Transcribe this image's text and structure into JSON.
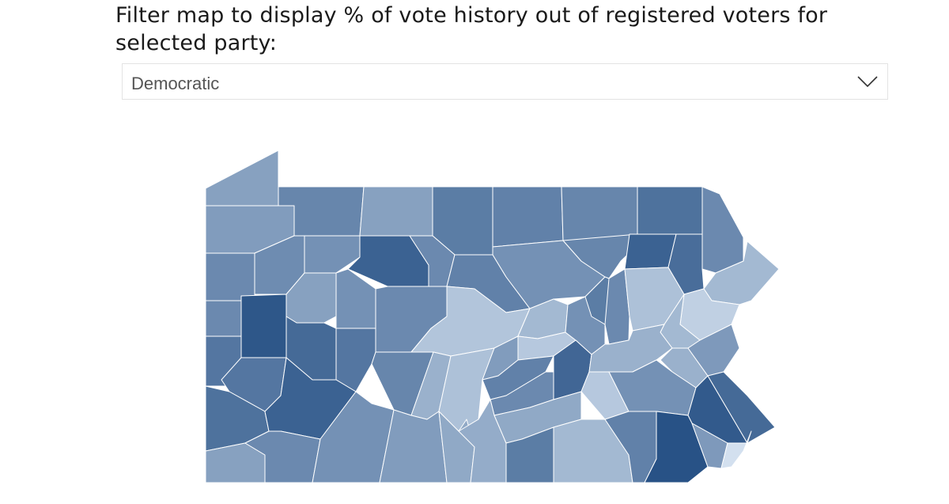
{
  "filter": {
    "title": "Filter map to display % of vote history out of registered voters for selected party:",
    "selected_party": "Democratic"
  },
  "map": {
    "name": "Pennsylvania counties",
    "color_scale": {
      "low": "#dce8f5",
      "high": "#1f4a80"
    },
    "counties": [
      {
        "key": "erie",
        "level": 0.45
      },
      {
        "key": "crawford",
        "level": 0.48
      },
      {
        "key": "warren",
        "level": 0.62
      },
      {
        "key": "mckean",
        "level": 0.45
      },
      {
        "key": "potter",
        "level": 0.68
      },
      {
        "key": "tioga",
        "level": 0.65
      },
      {
        "key": "bradford",
        "level": 0.62
      },
      {
        "key": "susquehanna",
        "level": 0.75
      },
      {
        "key": "wayne",
        "level": 0.6
      },
      {
        "key": "mercer",
        "level": 0.6
      },
      {
        "key": "venango",
        "level": 0.58
      },
      {
        "key": "forest",
        "level": 0.55
      },
      {
        "key": "elk",
        "level": 0.85
      },
      {
        "key": "cameron",
        "level": 0.6
      },
      {
        "key": "clinton",
        "level": 0.65
      },
      {
        "key": "lycoming",
        "level": 0.55
      },
      {
        "key": "sullivan",
        "level": 0.62
      },
      {
        "key": "wyoming",
        "level": 0.85
      },
      {
        "key": "lackawanna",
        "level": 0.78
      },
      {
        "key": "pike",
        "level": 0.3
      },
      {
        "key": "lawrence",
        "level": 0.6
      },
      {
        "key": "butler",
        "level": 0.92
      },
      {
        "key": "clarion",
        "level": 0.45
      },
      {
        "key": "jefferson",
        "level": 0.55
      },
      {
        "key": "clearfield",
        "level": 0.6
      },
      {
        "key": "centre",
        "level": 0.22
      },
      {
        "key": "union",
        "level": 0.3
      },
      {
        "key": "snyder",
        "level": 0.2
      },
      {
        "key": "northumberland",
        "level": 0.55
      },
      {
        "key": "montour",
        "level": 0.68
      },
      {
        "key": "columbia",
        "level": 0.6
      },
      {
        "key": "luzerne",
        "level": 0.25
      },
      {
        "key": "monroe",
        "level": 0.15
      },
      {
        "key": "carbon",
        "level": 0.3
      },
      {
        "key": "beaver",
        "level": 0.72
      },
      {
        "key": "allegheny",
        "level": 0.72
      },
      {
        "key": "armstrong",
        "level": 0.8
      },
      {
        "key": "indiana",
        "level": 0.72
      },
      {
        "key": "cambria",
        "level": 0.62
      },
      {
        "key": "blair",
        "level": 0.35
      },
      {
        "key": "huntingdon",
        "level": 0.25
      },
      {
        "key": "mifflin",
        "level": 0.48
      },
      {
        "key": "juniata",
        "level": 0.65
      },
      {
        "key": "perry",
        "level": 0.6
      },
      {
        "key": "dauphin",
        "level": 0.82
      },
      {
        "key": "lebanon",
        "level": 0.2
      },
      {
        "key": "schuylkill",
        "level": 0.35
      },
      {
        "key": "lehigh",
        "level": 0.35
      },
      {
        "key": "northampton",
        "level": 0.5
      },
      {
        "key": "bucks",
        "level": 0.8
      },
      {
        "key": "washington",
        "level": 0.75
      },
      {
        "key": "westmoreland",
        "level": 0.85
      },
      {
        "key": "somerset",
        "level": 0.55
      },
      {
        "key": "bedford",
        "level": 0.48
      },
      {
        "key": "fulton",
        "level": 0.4
      },
      {
        "key": "franklin",
        "level": 0.38
      },
      {
        "key": "cumberland",
        "level": 0.4
      },
      {
        "key": "adams",
        "level": 0.68
      },
      {
        "key": "york",
        "level": 0.3
      },
      {
        "key": "lancaster",
        "level": 0.65
      },
      {
        "key": "berks",
        "level": 0.55
      },
      {
        "key": "montgomery",
        "level": 0.9
      },
      {
        "key": "chester",
        "level": 0.95
      },
      {
        "key": "delaware",
        "level": 0.5
      },
      {
        "key": "philadelphia",
        "level": 0.05
      },
      {
        "key": "greene",
        "level": 0.45
      },
      {
        "key": "fayette",
        "level": 0.6
      }
    ]
  }
}
